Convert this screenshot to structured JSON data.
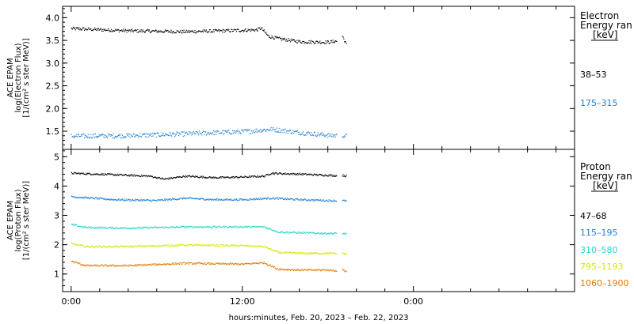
{
  "chart_data": [
    {
      "type": "scatter",
      "ylabel_lines": [
        "ACE EPAM",
        "log(Electron Flux)",
        "[1/(cm² s ster MeV)]"
      ],
      "ylim": [
        1.1,
        4.25
      ],
      "yticks": [
        1.5,
        2.0,
        2.5,
        3.0,
        3.5,
        4.0
      ],
      "ytick_labels": [
        "1.5",
        "2.0",
        "2.5",
        "3.0",
        "3.5",
        "4.0"
      ],
      "legend_title": [
        "Electron",
        "Energy ran",
        "[keV]"
      ],
      "series": [
        {
          "name": "38–53",
          "color": "#000000",
          "anchors_x": [
            0,
            4,
            8,
            13,
            13.3,
            13.8,
            14.5,
            16,
            18,
            19.3
          ],
          "anchors_y": [
            3.77,
            3.72,
            3.7,
            3.74,
            3.78,
            3.6,
            3.55,
            3.48,
            3.47,
            3.52
          ],
          "gap_start": 18.6,
          "gap_end": 19.0,
          "after_gap": [
            3.6,
            3.4
          ],
          "end": 19.3
        },
        {
          "name": "175–315",
          "color": "#1c7fd8",
          "anchors_x": [
            0,
            4,
            8,
            12,
            14,
            16,
            18,
            19.3
          ],
          "anchors_y": [
            1.4,
            1.41,
            1.45,
            1.5,
            1.55,
            1.48,
            1.42,
            1.4
          ],
          "gap_start": 18.6,
          "gap_end": 19.0,
          "after_gap": [
            1.42,
            1.4
          ],
          "end": 19.3
        }
      ]
    },
    {
      "type": "scatter",
      "ylabel_lines": [
        "ACE EPAM",
        "log(Proton Flux)",
        "[1/(cm² s ster MeV)]"
      ],
      "ylim": [
        0.4,
        5.25
      ],
      "yticks": [
        1,
        2,
        3,
        4,
        5
      ],
      "ytick_labels": [
        "1",
        "2",
        "3",
        "4",
        "5"
      ],
      "legend_title": [
        "Proton",
        "Energy ran",
        "[keV]"
      ],
      "series": [
        {
          "name": "47–68",
          "color": "#000000",
          "anchors_x": [
            0,
            3,
            5.5,
            6.5,
            8,
            10,
            12,
            13.5,
            14,
            16,
            18,
            19.3
          ],
          "anchors_y": [
            4.45,
            4.4,
            4.35,
            4.25,
            4.35,
            4.3,
            4.32,
            4.35,
            4.45,
            4.42,
            4.38,
            4.35
          ],
          "gap_start": 18.6,
          "gap_end": 19.0,
          "after_gap": [
            4.38,
            4.35
          ],
          "end": 19.3
        },
        {
          "name": "115–195",
          "color": "#1c7fd8",
          "anchors_x": [
            0,
            3,
            6,
            8,
            10,
            12,
            14,
            16,
            18,
            19.3
          ],
          "anchors_y": [
            3.65,
            3.55,
            3.52,
            3.6,
            3.55,
            3.55,
            3.6,
            3.55,
            3.52,
            3.5
          ],
          "gap_start": 18.6,
          "gap_end": 19.0,
          "after_gap": [
            3.52,
            3.5
          ],
          "end": 19.3
        },
        {
          "name": "310–580",
          "color": "#22d6c8",
          "anchors_x": [
            0,
            1,
            4,
            8,
            12,
            13.5,
            14.5,
            16,
            18,
            19.3
          ],
          "anchors_y": [
            2.7,
            2.6,
            2.58,
            2.62,
            2.62,
            2.62,
            2.45,
            2.42,
            2.4,
            2.4
          ],
          "gap_start": 18.6,
          "gap_end": 19.0,
          "after_gap": [
            2.4,
            2.38
          ],
          "end": 19.3
        },
        {
          "name": "795–1193",
          "color": "#d4e600",
          "anchors_x": [
            0,
            1,
            4,
            8,
            12,
            13.5,
            14.5,
            16,
            18,
            19.3
          ],
          "anchors_y": [
            2.05,
            1.95,
            1.95,
            2.0,
            1.98,
            1.95,
            1.75,
            1.72,
            1.72,
            1.7
          ],
          "gap_start": 18.6,
          "gap_end": 19.0,
          "after_gap": [
            1.72,
            1.7
          ],
          "end": 19.3
        },
        {
          "name": "1060–1900",
          "color": "#e07b00",
          "anchors_x": [
            0,
            1,
            4,
            8,
            12,
            13.5,
            14.5,
            16,
            18,
            19.3
          ],
          "anchors_y": [
            1.45,
            1.3,
            1.3,
            1.38,
            1.35,
            1.4,
            1.18,
            1.15,
            1.15,
            1.1
          ],
          "gap_start": 18.6,
          "gap_end": 19.0,
          "after_gap": [
            1.15,
            1.1
          ],
          "end": 19.3
        }
      ]
    }
  ],
  "x_axis": {
    "label": "hours:minutes, Feb. 20, 2023 – Feb. 22, 2023",
    "range_hours": [
      -0.6,
      35.3
    ],
    "major_ticks": [
      0,
      12,
      24
    ],
    "major_labels": [
      "0:00",
      "12:00",
      "0:00"
    ],
    "minor_step_hours": 2
  }
}
